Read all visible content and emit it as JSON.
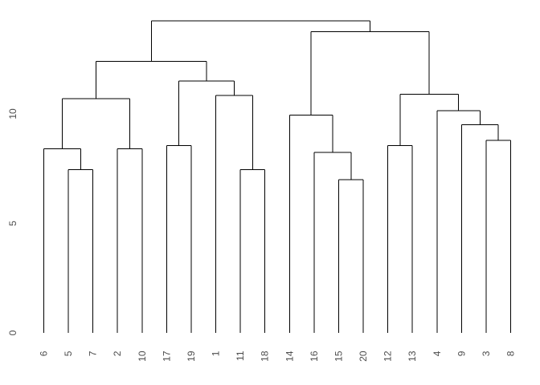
{
  "figure": {
    "background_color": "#ffffff",
    "line_color": "#000000",
    "text_color": "#4d4d4d",
    "title": ""
  },
  "chart_data": {
    "type": "dendrogram",
    "orientation": "vertical",
    "title": "",
    "xlabel": "",
    "ylabel": "",
    "grid": false,
    "leaf_order": [
      "6",
      "5",
      "7",
      "2",
      "10",
      "17",
      "19",
      "1",
      "11",
      "18",
      "14",
      "16",
      "15",
      "20",
      "12",
      "13",
      "4",
      "9",
      "3",
      "8"
    ],
    "y_axis": {
      "tick_labels": [
        "0",
        "5",
        "10"
      ],
      "tick_values": [
        0,
        5,
        10
      ],
      "range": [
        0,
        14.5
      ]
    },
    "tree": {
      "h": 14.25,
      "children": [
        {
          "h": 12.4,
          "children": [
            {
              "h": 10.7,
              "children": [
                {
                  "h": 8.4,
                  "children": [
                    "6",
                    {
                      "h": 7.45,
                      "children": [
                        "5",
                        "7"
                      ]
                    }
                  ]
                },
                {
                  "h": 8.4,
                  "children": [
                    "2",
                    "10"
                  ]
                }
              ]
            },
            {
              "h": 11.5,
              "children": [
                {
                  "h": 8.55,
                  "children": [
                    "17",
                    "19"
                  ]
                },
                {
                  "h": 10.85,
                  "children": [
                    "1",
                    {
                      "h": 7.45,
                      "children": [
                        "11",
                        "18"
                      ]
                    }
                  ]
                }
              ]
            }
          ]
        },
        {
          "h": 13.75,
          "children": [
            {
              "h": 9.95,
              "children": [
                "14",
                {
                  "h": 8.25,
                  "children": [
                    "16",
                    {
                      "h": 7.0,
                      "children": [
                        "15",
                        "20"
                      ]
                    }
                  ]
                }
              ]
            },
            {
              "h": 10.9,
              "children": [
                {
                  "h": 8.55,
                  "children": [
                    "12",
                    "13"
                  ]
                },
                {
                  "h": 10.15,
                  "children": [
                    "4",
                    {
                      "h": 9.5,
                      "children": [
                        "9",
                        {
                          "h": 8.8,
                          "children": [
                            "3",
                            "8"
                          ]
                        }
                      ]
                    }
                  ]
                }
              ]
            }
          ]
        }
      ]
    }
  }
}
